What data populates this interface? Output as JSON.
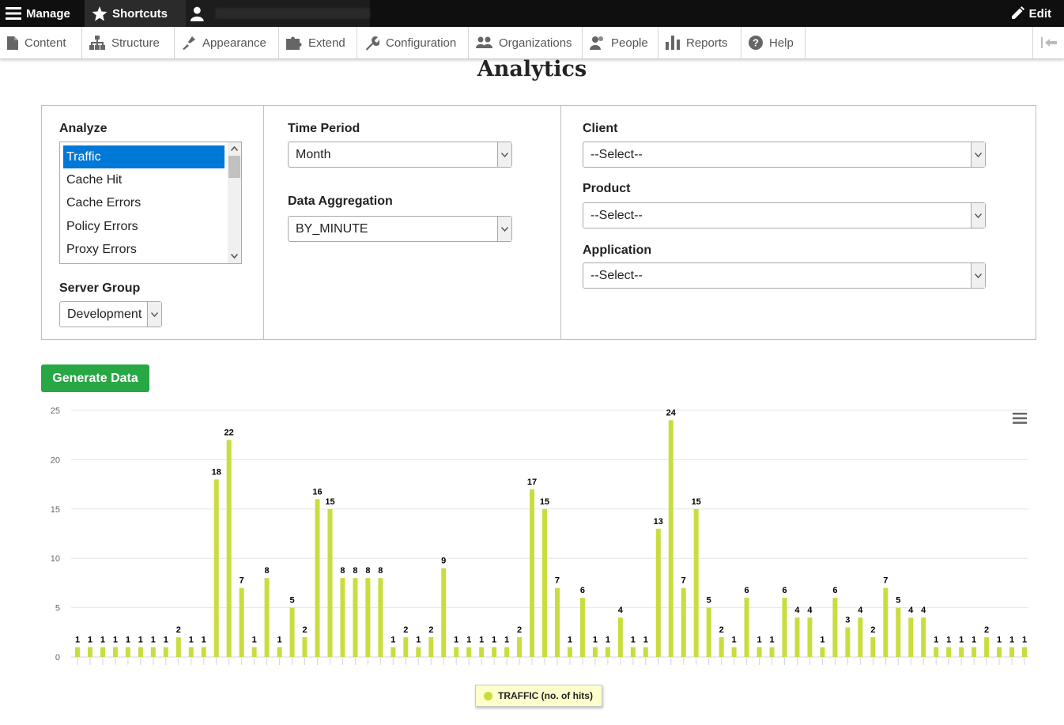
{
  "toolbar": {
    "manage_label": "Manage",
    "shortcuts_label": "Shortcuts",
    "edit_label": "Edit"
  },
  "tray": {
    "items": [
      {
        "label": "Content",
        "icon": "file-icon"
      },
      {
        "label": "Structure",
        "icon": "sitemap-icon"
      },
      {
        "label": "Appearance",
        "icon": "brush-icon"
      },
      {
        "label": "Extend",
        "icon": "puzzle-icon"
      },
      {
        "label": "Configuration",
        "icon": "wrench-icon"
      },
      {
        "label": "Organizations",
        "icon": "group-icon"
      },
      {
        "label": "People",
        "icon": "people-icon"
      },
      {
        "label": "Reports",
        "icon": "bar-chart-icon"
      },
      {
        "label": "Help",
        "icon": "help-icon"
      }
    ]
  },
  "page": {
    "title": "Analytics"
  },
  "filters": {
    "analyze_label": "Analyze",
    "analyze_options": [
      "Traffic",
      "Cache Hit",
      "Cache Errors",
      "Policy Errors",
      "Proxy Errors"
    ],
    "analyze_selected": "Traffic",
    "server_group_label": "Server Group",
    "server_group_value": "Development",
    "time_period_label": "Time Period",
    "time_period_value": "Month",
    "data_aggregation_label": "Data Aggregation",
    "data_aggregation_value": "BY_MINUTE",
    "client_label": "Client",
    "client_value": "--Select--",
    "product_label": "Product",
    "product_value": "--Select--",
    "application_label": "Application",
    "application_value": "--Select--"
  },
  "generate_button": "Generate Data",
  "colors": {
    "bar": "#c9dd3f",
    "button": "#28a745",
    "selection": "#0078d7"
  },
  "chart_data": {
    "type": "bar",
    "title": "",
    "xlabel": "",
    "ylabel": "",
    "ylim": [
      0,
      25
    ],
    "yticks": [
      0,
      5,
      10,
      15,
      20,
      25
    ],
    "grid": true,
    "legend_position": "bottom-center",
    "series": [
      {
        "name": "TRAFFIC (no. of hits)",
        "values": [
          1,
          1,
          1,
          1,
          1,
          1,
          1,
          1,
          2,
          1,
          1,
          18,
          22,
          7,
          1,
          8,
          1,
          5,
          2,
          16,
          15,
          8,
          8,
          8,
          8,
          1,
          2,
          1,
          2,
          9,
          1,
          1,
          1,
          1,
          1,
          2,
          17,
          15,
          7,
          1,
          6,
          1,
          1,
          4,
          1,
          1,
          13,
          24,
          7,
          15,
          5,
          2,
          1,
          6,
          1,
          1,
          6,
          4,
          4,
          1,
          6,
          3,
          4,
          2,
          7,
          5,
          4,
          4,
          1,
          1,
          1,
          1,
          2,
          1,
          1,
          1
        ]
      }
    ]
  }
}
